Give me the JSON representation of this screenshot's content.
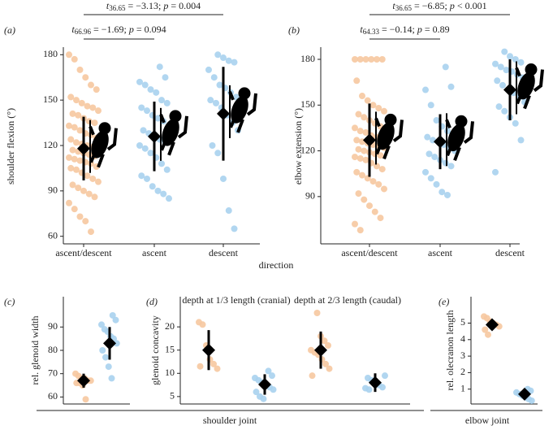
{
  "figure": {
    "xlabel": "direction",
    "groups": [
      {
        "label": "shoulder joint"
      },
      {
        "label": "elbow joint"
      }
    ]
  },
  "chart_data": [
    {
      "type": "strip",
      "panel": "(a)",
      "ylabel": "shoulder flexion (°)",
      "categories": [
        "ascent/descent",
        "ascent",
        "descent"
      ],
      "ylim": [
        55,
        185
      ],
      "yticks": [
        60,
        90,
        120,
        150,
        180
      ],
      "annotations": [
        {
          "stat": "t",
          "df": "36.65",
          "text": "= −3.13;",
          "p": "p",
          "p_text": "= 0.004"
        },
        {
          "stat": "t",
          "df": "66.96",
          "text": "= −1.69;",
          "p": "p",
          "p_text": "= 0.094"
        }
      ],
      "series": [
        {
          "color": "#f6c8a0",
          "mean": 118,
          "sd": 21,
          "values": [
            180,
            177,
            170,
            165,
            160,
            157,
            152,
            150,
            148,
            146,
            145,
            143,
            141,
            140,
            138,
            136,
            135,
            133,
            132,
            130,
            128,
            127,
            125,
            124,
            122,
            121,
            120,
            119,
            118,
            117,
            116,
            115,
            114,
            113,
            112,
            111,
            110,
            109,
            108,
            106,
            105,
            104,
            102,
            100,
            98,
            96,
            94,
            92,
            90,
            88,
            86,
            82,
            78,
            73,
            70,
            63
          ]
        },
        {
          "color": "#a9d2ee",
          "mean": 126,
          "sd": 23,
          "values": [
            172,
            165,
            162,
            160,
            157,
            155,
            150,
            148,
            145,
            143,
            140,
            138,
            136,
            133,
            130,
            128,
            126,
            124,
            122,
            120,
            118,
            115,
            112,
            108,
            104,
            100,
            98,
            93,
            90,
            88,
            85
          ]
        },
        {
          "color": "#a9d2ee",
          "mean": 141,
          "sd": 31,
          "values": [
            180,
            178,
            176,
            175,
            170,
            165,
            160,
            158,
            155,
            152,
            150,
            148,
            145,
            140,
            135,
            130,
            120,
            115,
            98,
            77,
            65
          ]
        }
      ]
    },
    {
      "type": "strip",
      "panel": "(b)",
      "ylabel": "elbow extension (°)",
      "categories": [
        "ascent/descent",
        "ascent",
        "descent"
      ],
      "ylim": [
        59,
        188
      ],
      "yticks": [
        90,
        120,
        150,
        180
      ],
      "annotations": [
        {
          "stat": "t",
          "df": "36.65",
          "text": "= −6.85;",
          "p": "p",
          "p_text": "< 0.001"
        },
        {
          "stat": "t",
          "df": "64.33",
          "text": "= −0.14;",
          "p": "p",
          "p_text": "= 0.89"
        }
      ],
      "series": [
        {
          "color": "#f6c8a0",
          "mean": 127,
          "sd": 24,
          "values": [
            180,
            180,
            180,
            180,
            180,
            180,
            166,
            156,
            153,
            150,
            148,
            146,
            144,
            142,
            140,
            138,
            136,
            135,
            133,
            132,
            130,
            129,
            128,
            127,
            126,
            125,
            124,
            123,
            122,
            121,
            120,
            119,
            118,
            117,
            116,
            115,
            114,
            112,
            110,
            108,
            106,
            104,
            102,
            100,
            98,
            95,
            92,
            88,
            84,
            80,
            76,
            72,
            68
          ]
        },
        {
          "color": "#a9d2ee",
          "mean": 126,
          "sd": 18,
          "values": [
            175,
            162,
            160,
            150,
            140,
            136,
            133,
            131,
            129,
            127,
            126,
            124,
            122,
            120,
            118,
            116,
            114,
            112,
            110,
            106,
            102,
            98,
            93,
            91
          ]
        },
        {
          "color": "#a9d2ee",
          "mean": 160,
          "sd": 20,
          "values": [
            185,
            182,
            180,
            178,
            177,
            175,
            173,
            172,
            170,
            168,
            166,
            163,
            160,
            158,
            155,
            152,
            149,
            146,
            142,
            138,
            127,
            106
          ]
        }
      ]
    },
    {
      "type": "strip",
      "panel": "(c)",
      "ylabel": "rel. glenoid width",
      "ylim": [
        57,
        103
      ],
      "yticks": [
        60,
        70,
        80,
        90
      ],
      "series": [
        {
          "color": "#f6c8a0",
          "mean": 67,
          "sd": 3,
          "values": [
            70,
            69,
            68,
            68,
            67,
            67,
            66,
            66,
            65,
            59
          ]
        },
        {
          "color": "#a9d2ee",
          "mean": 83,
          "sd": 7,
          "values": [
            95,
            93,
            91,
            89,
            88,
            86,
            85,
            83,
            80,
            77,
            73,
            68
          ]
        }
      ]
    },
    {
      "type": "strip",
      "panel": "(d)",
      "ylabel": "glenoid concavity",
      "ylim": [
        3.4,
        26.5
      ],
      "yticks": [
        5,
        10,
        15,
        20
      ],
      "subtitles": [
        "depth at 1/3 length (cranial)",
        "depth at 2/3 length (caudal)"
      ],
      "series": [
        {
          "color": "#f6c8a0",
          "mean": 15,
          "sd": 4.3,
          "values": [
            21,
            20.5,
            16,
            13,
            12,
            11,
            11.5
          ]
        },
        {
          "color": "#a9d2ee",
          "mean": 7.6,
          "sd": 2.2,
          "values": [
            10.5,
            9.5,
            9,
            8.5,
            8,
            7.5,
            7,
            6.5,
            6,
            5,
            4.5
          ]
        },
        {
          "color": "#f6c8a0",
          "mean": 15,
          "sd": 4,
          "values": [
            23,
            18,
            17,
            16,
            15,
            14.5,
            14,
            13,
            12,
            11,
            9.5
          ]
        },
        {
          "color": "#a9d2ee",
          "mean": 8,
          "sd": 2,
          "values": [
            9.5,
            9,
            8.5,
            8,
            7.5,
            7,
            6.8,
            6.5
          ]
        }
      ]
    },
    {
      "type": "strip",
      "panel": "(e)",
      "ylabel": "rel. olecranon length",
      "ylim": [
        0.1,
        6.6
      ],
      "yticks": [
        1,
        2,
        3,
        4,
        5
      ],
      "series": [
        {
          "color": "#f6c8a0",
          "mean": 4.9,
          "sd": 0.3,
          "values": [
            5.4,
            5.3,
            5.1,
            5,
            4.9,
            4.8,
            4.6,
            4.3
          ]
        },
        {
          "color": "#a9d2ee",
          "mean": 0.7,
          "sd": 0.3,
          "values": [
            1.0,
            0.9,
            0.8,
            0.7,
            0.6,
            0.5,
            0.4,
            0.3
          ]
        }
      ]
    }
  ]
}
